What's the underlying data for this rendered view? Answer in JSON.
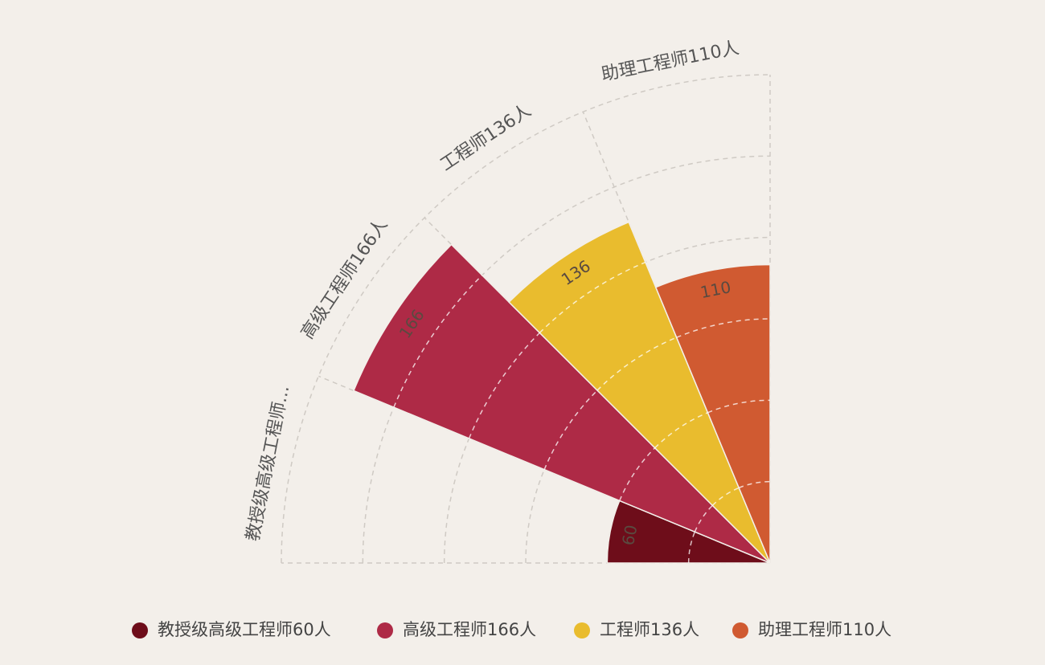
{
  "chart_data": {
    "type": "nightingale-rose",
    "categories": [
      "教授级高级工程师...",
      "高级工程师166人",
      "工程师136人",
      "助理工程师110人"
    ],
    "values": [
      60,
      166,
      136,
      110
    ],
    "value_labels": [
      "60",
      "166",
      "136",
      "110"
    ],
    "legend": [
      {
        "name": "教授级高级工程师60人",
        "color": "#6e0d1a"
      },
      {
        "name": "高级工程师166人",
        "color": "#ae2a46"
      },
      {
        "name": "工程师136人",
        "color": "#e9bc2e"
      },
      {
        "name": "助理工程师110人",
        "color": "#d05a31"
      }
    ],
    "rlim": [
      0,
      180
    ],
    "grid": true,
    "legend_position": "bottom"
  }
}
